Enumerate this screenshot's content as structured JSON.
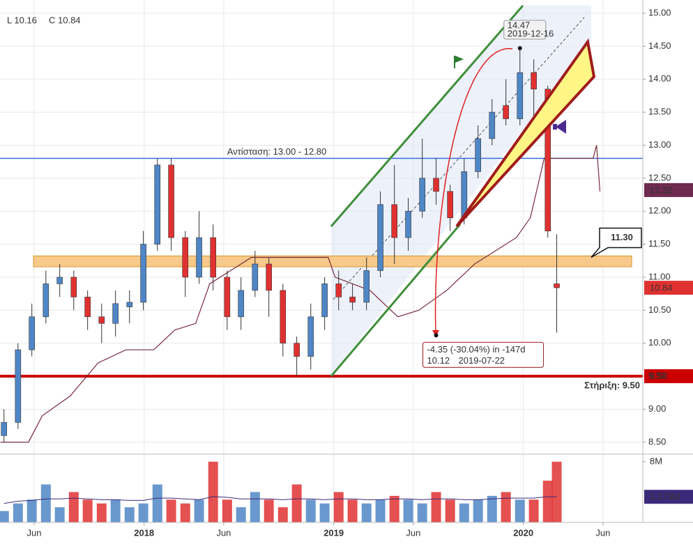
{
  "chart_data": {
    "type": "candlestick",
    "header_low": "L 10.16",
    "header_close": "C 10.84",
    "x": [
      2017.261,
      2017.335,
      2017.408,
      2017.482,
      2017.555,
      2017.629,
      2017.702,
      2017.776,
      2017.849,
      2017.923,
      2017.996,
      2018.07,
      2018.143,
      2018.217,
      2018.29,
      2018.364,
      2018.438,
      2018.511,
      2018.585,
      2018.658,
      2018.732,
      2018.805,
      2018.879,
      2018.952,
      2019.026,
      2019.099,
      2019.173,
      2019.246,
      2019.32,
      2019.393,
      2019.467,
      2019.54,
      2019.614,
      2019.688,
      2019.761,
      2019.835,
      2019.908,
      2019.982,
      2020.055,
      2020.129,
      2020.176
    ],
    "open": [
      8.6,
      8.8,
      9.9,
      10.4,
      10.9,
      11.0,
      10.7,
      10.4,
      10.3,
      10.55,
      10.62,
      11.5,
      12.7,
      11.6,
      11.0,
      11.6,
      11.0,
      10.4,
      10.8,
      11.2,
      10.8,
      10.0,
      9.8,
      10.4,
      10.9,
      10.7,
      10.62,
      11.1,
      12.1,
      11.6,
      12.0,
      12.5,
      12.3,
      11.9,
      12.6,
      13.1,
      13.6,
      13.4,
      14.1,
      13.85,
      10.9
    ],
    "high": [
      9.0,
      10.0,
      10.6,
      11.1,
      11.2,
      11.1,
      10.8,
      10.6,
      10.8,
      10.8,
      11.7,
      12.8,
      12.8,
      11.7,
      12.0,
      11.8,
      11.1,
      11.0,
      11.4,
      11.3,
      10.9,
      10.1,
      10.6,
      11.0,
      11.1,
      10.9,
      11.3,
      12.3,
      12.7,
      12.2,
      13.1,
      12.8,
      12.4,
      12.8,
      13.3,
      13.7,
      14.0,
      14.47,
      14.3,
      13.9,
      11.65
    ],
    "low": [
      8.5,
      8.7,
      9.8,
      10.3,
      10.7,
      10.5,
      10.2,
      10.0,
      10.1,
      10.3,
      10.5,
      11.4,
      11.4,
      10.7,
      10.9,
      10.8,
      10.2,
      10.2,
      10.7,
      10.4,
      9.8,
      9.5,
      9.6,
      10.2,
      10.5,
      10.5,
      10.5,
      11.0,
      11.2,
      11.4,
      11.9,
      12.1,
      11.7,
      11.8,
      12.5,
      13.0,
      13.3,
      13.3,
      13.4,
      11.6,
      10.16
    ],
    "close": [
      8.8,
      9.9,
      10.4,
      10.9,
      11.0,
      10.7,
      10.4,
      10.3,
      10.6,
      10.62,
      11.5,
      12.7,
      11.6,
      11.0,
      11.6,
      11.0,
      10.4,
      10.8,
      11.2,
      10.8,
      10.0,
      9.8,
      10.4,
      10.9,
      10.7,
      10.62,
      11.1,
      12.1,
      11.6,
      12.0,
      12.5,
      12.3,
      11.9,
      12.6,
      13.1,
      13.5,
      13.4,
      14.1,
      13.85,
      11.7,
      10.84
    ],
    "up_color": "#4f86c6",
    "down_color": "#e03131",
    "xlim": [
      2017.24,
      2020.63
    ],
    "xticks": [
      {
        "value": 2017.42,
        "label": "Jun"
      },
      2018,
      {
        "value": 2018.42,
        "label": "Jun"
      },
      2019,
      {
        "value": 2019.42,
        "label": "Jun"
      },
      2020,
      {
        "value": 2020.42,
        "label": "Jun"
      }
    ],
    "ylim": [
      8.34,
      15.2
    ],
    "yticks": [
      {
        "value": 8.5,
        "label": "8.50"
      },
      {
        "value": 9,
        "label": "9.00"
      },
      {
        "value": 9.5,
        "label": "9.50"
      },
      {
        "value": 10,
        "label": "10.00"
      },
      {
        "value": 10.5,
        "label": "10.50"
      },
      {
        "value": 11,
        "label": "11.00"
      },
      {
        "value": 11.5,
        "label": "11.50"
      },
      {
        "value": 12,
        "label": "12.00"
      },
      {
        "value": 12.5,
        "label": "12.50"
      },
      {
        "value": 13,
        "label": "13.00"
      },
      {
        "value": 13.5,
        "label": "13.50"
      },
      {
        "value": 14,
        "label": "14.00"
      },
      {
        "value": 14.5,
        "label": "14.50"
      },
      {
        "value": 15,
        "label": "15.00"
      }
    ],
    "grid": true,
    "price_line": {
      "color": "#7b2a3b",
      "x": [
        2017.243,
        2017.39,
        2017.463,
        2017.61,
        2017.757,
        2017.904,
        2018.051,
        2018.162,
        2018.272,
        2018.346,
        2018.566,
        2018.971,
        2019.007,
        2019.191,
        2019.338,
        2019.449,
        2019.596,
        2019.743,
        2019.963,
        2020.037,
        2020.11,
        2020.368,
        2020.386,
        2020.404
      ],
      "values": [
        8.5,
        8.5,
        8.9,
        9.2,
        9.7,
        9.9,
        9.9,
        10.2,
        10.3,
        10.9,
        11.3,
        11.3,
        11.0,
        10.8,
        10.4,
        10.5,
        10.8,
        11.2,
        11.6,
        11.9,
        12.8,
        12.8,
        13.0,
        12.3
      ]
    },
    "volume": {
      "values": [
        1.5,
        2.5,
        3,
        5,
        2,
        4,
        3,
        2.5,
        3,
        2,
        2.5,
        5,
        3,
        2.5,
        3,
        8,
        3,
        2,
        4,
        3,
        2,
        5,
        3,
        2.5,
        4,
        3,
        2.5,
        3,
        3.5,
        3,
        2.5,
        4,
        3,
        2.5,
        3,
        3.5,
        4,
        3,
        3,
        5.5,
        8
      ],
      "average": [
        2.5,
        2.8,
        2.9,
        3.1,
        3.1,
        3.2,
        3.1,
        3.0,
        3.0,
        2.9,
        2.9,
        3.2,
        3.2,
        3.1,
        3.0,
        3.4,
        3.3,
        3.1,
        3.1,
        3.1,
        3.0,
        3.1,
        3.1,
        3.0,
        3.1,
        3.1,
        3.0,
        3.0,
        3.1,
        3.1,
        3.0,
        3.1,
        3.1,
        3.0,
        3.0,
        3.1,
        3.2,
        3.2,
        3.2,
        3.4,
        3.373
      ],
      "average_color": "#3b2a7a",
      "ylim": [
        0,
        8.72
      ],
      "yticks": [
        {
          "value": 8,
          "label": "8M"
        }
      ],
      "last_average": {
        "value": 3.373,
        "label": "3.373M"
      }
    },
    "levels": [
      {
        "name": "Αντίσταση: 13.00 - 12.80",
        "value": 12.8,
        "color": "#3a6fd8"
      },
      {
        "name": "Στήριξη: 9.50",
        "value": 9.5,
        "color": "#cc0000"
      }
    ],
    "zone": {
      "low": 11.2,
      "high": 11.28,
      "color": "#f7c98a"
    },
    "price_badges": [
      {
        "value": 12.32,
        "color": "#6e2a4f"
      },
      {
        "value": 10.84,
        "color": "#e03131"
      },
      {
        "value": {
          "value": 9.5,
          "label": "9.50"
        },
        "color": "#cc0000"
      }
    ],
    "annotations": {
      "peak": {
        "x": 2019.982,
        "value": 14.47,
        "date": "2019-12-16"
      },
      "measure": {
        "text": "-4.35 (-30.04%) in -147d",
        "x": 2019.54,
        "value": 10.12,
        "date": "2019-07-22"
      },
      "callout": {
        "value": {
          "value": 11.3,
          "label": "11.30"
        }
      }
    }
  }
}
